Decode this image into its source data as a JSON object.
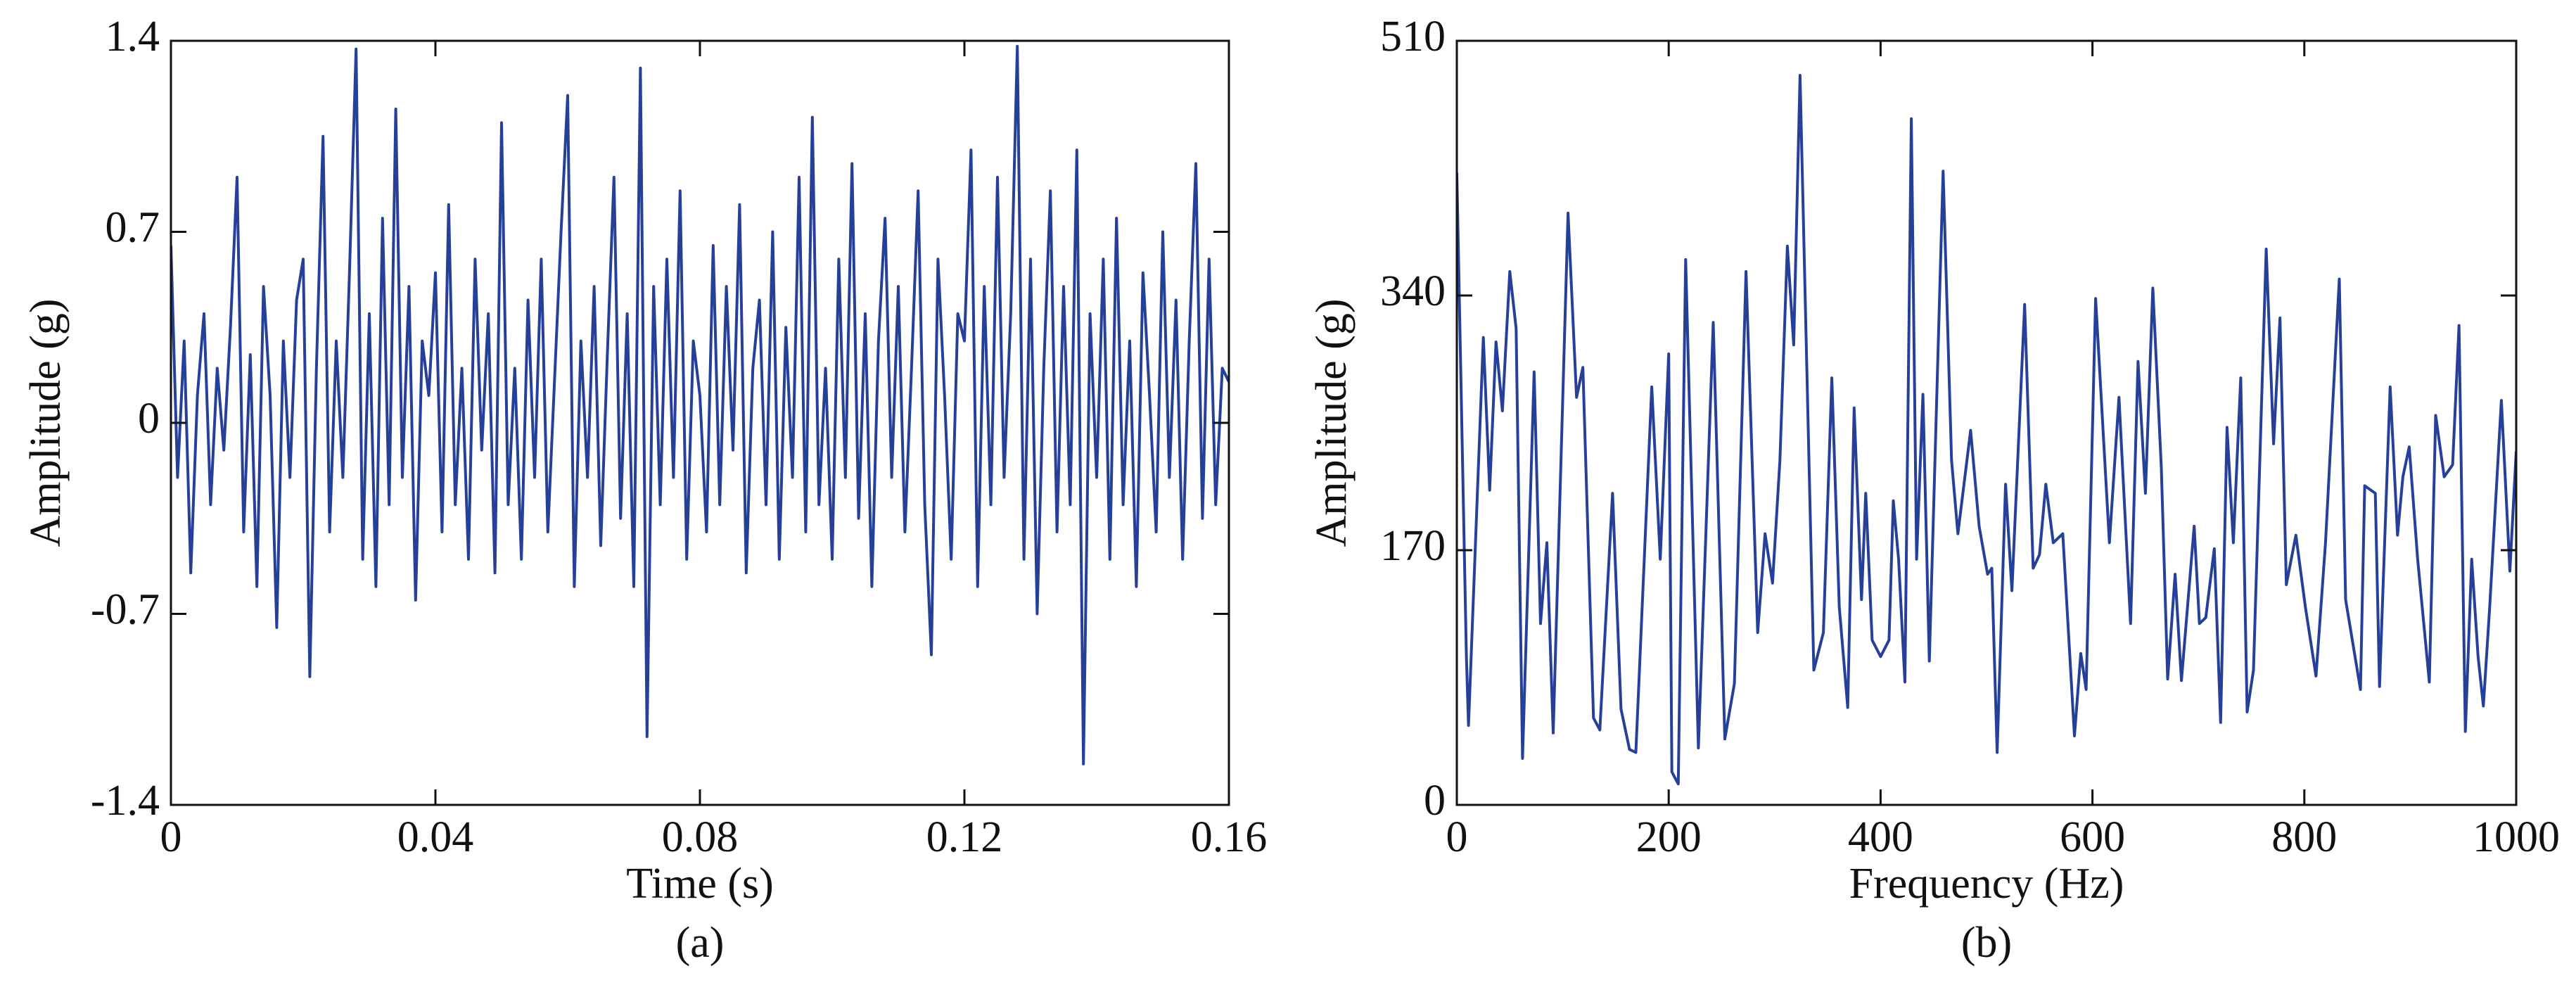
{
  "chart_data": [
    {
      "type": "line",
      "xlabel": "Time (s)",
      "ylabel": "Amplitude (g)",
      "caption": "(a)",
      "color": "#26409a",
      "xlim": [
        0,
        0.16
      ],
      "xticks": [
        0,
        0.04,
        0.08,
        0.12,
        0.16
      ],
      "ylim": [
        -1.4,
        1.4
      ],
      "yticks": [
        -1.4,
        -0.7,
        0,
        0.7,
        1.4
      ],
      "x": [
        0,
        0.001,
        0.002,
        0.003,
        0.004,
        0.005,
        0.006,
        0.007,
        0.008,
        0.009,
        0.01,
        0.011,
        0.012,
        0.013,
        0.014,
        0.015,
        0.016,
        0.017,
        0.018,
        0.019,
        0.02,
        0.021,
        0.022,
        0.023,
        0.024,
        0.025,
        0.026,
        0.027,
        0.028,
        0.029,
        0.03,
        0.031,
        0.032,
        0.033,
        0.034,
        0.035,
        0.036,
        0.037,
        0.038,
        0.039,
        0.04,
        0.041,
        0.042,
        0.043,
        0.044,
        0.045,
        0.046,
        0.047,
        0.048,
        0.049,
        0.05,
        0.051,
        0.052,
        0.053,
        0.054,
        0.055,
        0.056,
        0.057,
        0.058,
        0.059,
        0.06,
        0.061,
        0.062,
        0.063,
        0.064,
        0.065,
        0.066,
        0.067,
        0.068,
        0.069,
        0.07,
        0.071,
        0.072,
        0.073,
        0.074,
        0.075,
        0.076,
        0.077,
        0.078,
        0.079,
        0.08,
        0.081,
        0.082,
        0.083,
        0.084,
        0.085,
        0.086,
        0.087,
        0.088,
        0.089,
        0.09,
        0.091,
        0.092,
        0.093,
        0.094,
        0.095,
        0.096,
        0.097,
        0.098,
        0.099,
        0.1,
        0.101,
        0.102,
        0.103,
        0.104,
        0.105,
        0.106,
        0.107,
        0.108,
        0.109,
        0.11,
        0.111,
        0.112,
        0.113,
        0.114,
        0.115,
        0.116,
        0.117,
        0.118,
        0.119,
        0.12,
        0.121,
        0.122,
        0.123,
        0.124,
        0.125,
        0.126,
        0.127,
        0.128,
        0.129,
        0.13,
        0.131,
        0.132,
        0.133,
        0.134,
        0.135,
        0.136,
        0.137,
        0.138,
        0.139,
        0.14,
        0.141,
        0.142,
        0.143,
        0.144,
        0.145,
        0.146,
        0.147,
        0.148,
        0.149,
        0.15,
        0.151,
        0.152,
        0.153,
        0.154,
        0.155,
        0.156,
        0.157,
        0.158,
        0.159,
        0.16
      ],
      "values": [
        0.65,
        -0.2,
        0.3,
        -0.55,
        0.1,
        0.4,
        -0.3,
        0.2,
        -0.1,
        0.35,
        0.9,
        -0.4,
        0.25,
        -0.6,
        0.5,
        0.1,
        -0.75,
        0.3,
        -0.2,
        0.45,
        0.6,
        -0.93,
        0.2,
        1.05,
        -0.4,
        0.3,
        -0.2,
        0.55,
        1.37,
        -0.5,
        0.4,
        -0.6,
        0.75,
        -0.3,
        1.15,
        -0.2,
        0.5,
        -0.65,
        0.3,
        0.1,
        0.55,
        -0.4,
        0.8,
        -0.3,
        0.2,
        -0.5,
        0.6,
        -0.1,
        0.4,
        -0.55,
        1.1,
        -0.3,
        0.2,
        -0.5,
        0.45,
        -0.2,
        0.6,
        -0.4,
        0.15,
        0.7,
        1.2,
        -0.6,
        0.3,
        -0.2,
        0.5,
        -0.45,
        0.25,
        0.9,
        -0.35,
        0.4,
        -0.6,
        1.3,
        -1.15,
        0.5,
        -0.3,
        0.6,
        -0.2,
        0.85,
        -0.5,
        0.3,
        0.1,
        -0.4,
        0.65,
        -0.3,
        0.5,
        -0.1,
        0.8,
        -0.55,
        0.2,
        0.45,
        -0.3,
        0.7,
        -0.5,
        0.35,
        -0.2,
        0.9,
        -0.4,
        1.12,
        -0.3,
        0.2,
        -0.5,
        0.6,
        -0.2,
        0.95,
        -0.35,
        0.4,
        -0.6,
        0.3,
        0.75,
        -0.2,
        0.5,
        -0.4,
        0.2,
        0.85,
        -0.3,
        -0.85,
        0.6,
        0.1,
        -0.5,
        0.4,
        0.3,
        1.0,
        -0.6,
        0.5,
        -0.3,
        0.9,
        -0.2,
        0.4,
        1.38,
        -0.5,
        0.6,
        -0.7,
        0.2,
        0.85,
        -0.4,
        0.5,
        -0.3,
        1.0,
        -1.25,
        0.4,
        -0.2,
        0.6,
        -0.5,
        0.75,
        -0.3,
        0.3,
        -0.6,
        0.55,
        0.1,
        -0.4,
        0.7,
        -0.2,
        0.45,
        -0.5,
        0.3,
        0.95,
        -0.35,
        0.6,
        -0.3,
        0.2,
        0.15
      ]
    },
    {
      "type": "line",
      "xlabel": "Frequency (Hz)",
      "ylabel": "Amplitude (g)",
      "caption": "(b)",
      "color": "#26409a",
      "xlim": [
        0,
        1000
      ],
      "xticks": [
        0,
        200,
        400,
        600,
        800,
        1000
      ],
      "ylim": [
        0,
        510
      ],
      "yticks": [
        0,
        170,
        340,
        510
      ],
      "x": [
        0,
        9,
        11,
        25,
        31,
        37,
        43,
        50,
        56,
        62,
        73,
        79,
        85,
        91,
        105,
        113,
        119,
        129,
        135,
        147,
        155,
        163,
        169,
        184,
        192,
        200,
        203,
        209,
        216,
        228,
        242,
        253,
        262,
        273,
        284,
        291,
        298,
        305,
        312,
        318,
        324,
        337,
        346,
        354,
        361,
        369,
        375,
        382,
        386,
        392,
        400,
        408,
        412,
        417,
        423,
        429,
        434,
        440,
        446,
        459,
        467,
        473,
        485,
        493,
        501,
        505,
        510,
        518,
        524,
        536,
        544,
        550,
        556,
        563,
        572,
        583,
        589,
        594,
        603,
        616,
        625,
        636,
        643,
        650,
        657,
        665,
        671,
        678,
        684,
        696,
        701,
        707,
        715,
        721,
        727,
        733,
        740,
        746,
        752,
        764,
        771,
        777,
        783,
        792,
        801,
        811,
        820,
        833,
        839,
        853,
        857,
        867,
        871,
        881,
        888,
        893,
        899,
        907,
        918,
        924,
        932,
        940,
        946,
        952,
        958,
        964,
        969,
        975,
        986,
        994,
        1000
      ],
      "values": [
        422,
        99,
        53,
        312,
        210,
        309,
        263,
        356,
        318,
        31,
        289,
        121,
        175,
        48,
        395,
        272,
        292,
        58,
        50,
        208,
        64,
        37,
        35,
        279,
        164,
        301,
        22,
        14,
        364,
        38,
        322,
        44,
        81,
        356,
        115,
        181,
        148,
        230,
        373,
        307,
        487,
        90,
        115,
        285,
        132,
        65,
        265,
        137,
        208,
        110,
        99,
        110,
        203,
        164,
        82,
        458,
        164,
        274,
        96,
        423,
        230,
        181,
        250,
        186,
        154,
        158,
        35,
        214,
        143,
        334,
        158,
        167,
        214,
        175,
        181,
        46,
        101,
        77,
        338,
        175,
        272,
        121,
        296,
        208,
        345,
        225,
        84,
        154,
        83,
        186,
        121,
        125,
        171,
        55,
        252,
        175,
        285,
        62,
        90,
        371,
        241,
        325,
        147,
        180,
        132,
        86,
        175,
        351,
        137,
        77,
        213,
        208,
        79,
        279,
        180,
        219,
        239,
        164,
        82,
        260,
        219,
        227,
        320,
        49,
        164,
        99,
        66,
        132,
        270,
        156,
        236
      ]
    }
  ]
}
